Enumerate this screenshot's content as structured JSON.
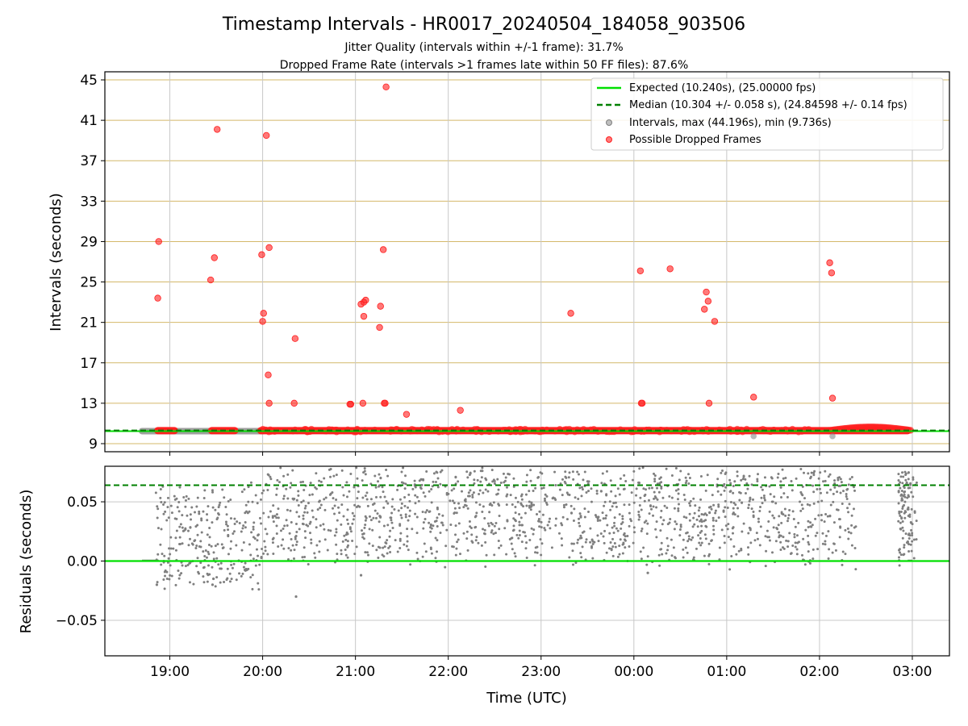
{
  "chart_data": [
    {
      "type": "scatter",
      "title": "Timestamp Intervals - HR0017_20240504_184058_903506",
      "subtitles": [
        "Jitter Quality (intervals within +/-1 frame): 31.7%",
        "Dropped Frame Rate (intervals >1 frames late within 50 FF files): 87.6%"
      ],
      "ylabel": "Intervals (seconds)",
      "ylim": [
        8.2,
        45.8
      ],
      "yticks": [
        "9",
        "13",
        "17",
        "21",
        "25",
        "29",
        "33",
        "37",
        "41",
        "45"
      ],
      "xlim_hours": [
        18.3,
        27.4
      ],
      "xticks": [
        "19:00",
        "20:00",
        "21:00",
        "22:00",
        "23:00",
        "00:00",
        "01:00",
        "02:00",
        "03:00"
      ],
      "grid": true,
      "legend_position": "top-right",
      "legend": [
        "Expected (10.240s), (25.00000 fps)",
        "Median (10.304 +/- 0.058 s), (24.84598 +/- 0.14 fps)",
        "Intervals, max (44.196s), min (9.736s)",
        "Possible Dropped Frames"
      ],
      "expected_interval": 10.24,
      "median_interval": 10.304,
      "dropped_frames": {
        "x_hours": [
          18.88,
          18.87,
          19.51,
          19.48,
          19.44,
          20.04,
          19.99,
          20.07,
          20.01,
          20.0,
          20.35,
          20.06,
          20.07,
          20.34,
          21.33,
          21.3,
          21.06,
          21.11,
          21.09,
          21.27,
          21.08,
          21.26,
          20.95,
          20.94,
          21.09,
          21.31,
          21.32,
          21.55,
          22.13,
          23.32,
          24.07,
          24.39,
          24.78,
          24.8,
          24.76,
          24.87,
          24.81,
          24.08,
          24.09,
          25.29,
          26.11,
          26.13,
          26.14
        ],
        "y": [
          29.0,
          23.4,
          40.1,
          27.4,
          25.2,
          39.5,
          27.7,
          28.4,
          21.9,
          21.1,
          19.4,
          15.8,
          13.0,
          13.0,
          44.3,
          28.2,
          22.8,
          23.2,
          21.6,
          22.6,
          13.0,
          20.5,
          12.9,
          12.9,
          23.0,
          13.0,
          13.0,
          11.9,
          12.3,
          21.9,
          26.1,
          26.3,
          24.0,
          23.1,
          22.3,
          21.1,
          13.0,
          13.0,
          13.0,
          13.6,
          26.9,
          25.9,
          13.5
        ],
        "band_y": 10.29
      },
      "min_intervals": {
        "x_hours": [
          25.29,
          26.14
        ],
        "y": [
          9.74,
          9.74
        ]
      },
      "colors": {
        "expected": "#00e000",
        "median": "#008000",
        "intervals": "#7f7f7f",
        "dropped": "#ff2020",
        "hgrid": "#d4b86a",
        "vgrid": "#c8c8c8"
      }
    },
    {
      "type": "scatter",
      "ylabel": "Residuals (seconds)",
      "xlabel": "Time (UTC)",
      "ylim": [
        -0.08,
        0.08
      ],
      "yticks": [
        "−0.05",
        "0.00",
        "0.05"
      ],
      "ytick_values": [
        -0.05,
        0.0,
        0.05
      ],
      "expected_residual": 0.0,
      "median_residual": 0.064,
      "grid": true,
      "residuals_note_points": "dense cloud of residuals mostly between 0.00 and 0.08 s",
      "outliers": {
        "x_hours": [
          19.46,
          20.36,
          21.06,
          24.15,
          19.47,
          18.86
        ],
        "y": [
          -0.02,
          -0.03,
          -0.012,
          -0.01,
          -0.015,
          -0.02
        ]
      }
    }
  ]
}
